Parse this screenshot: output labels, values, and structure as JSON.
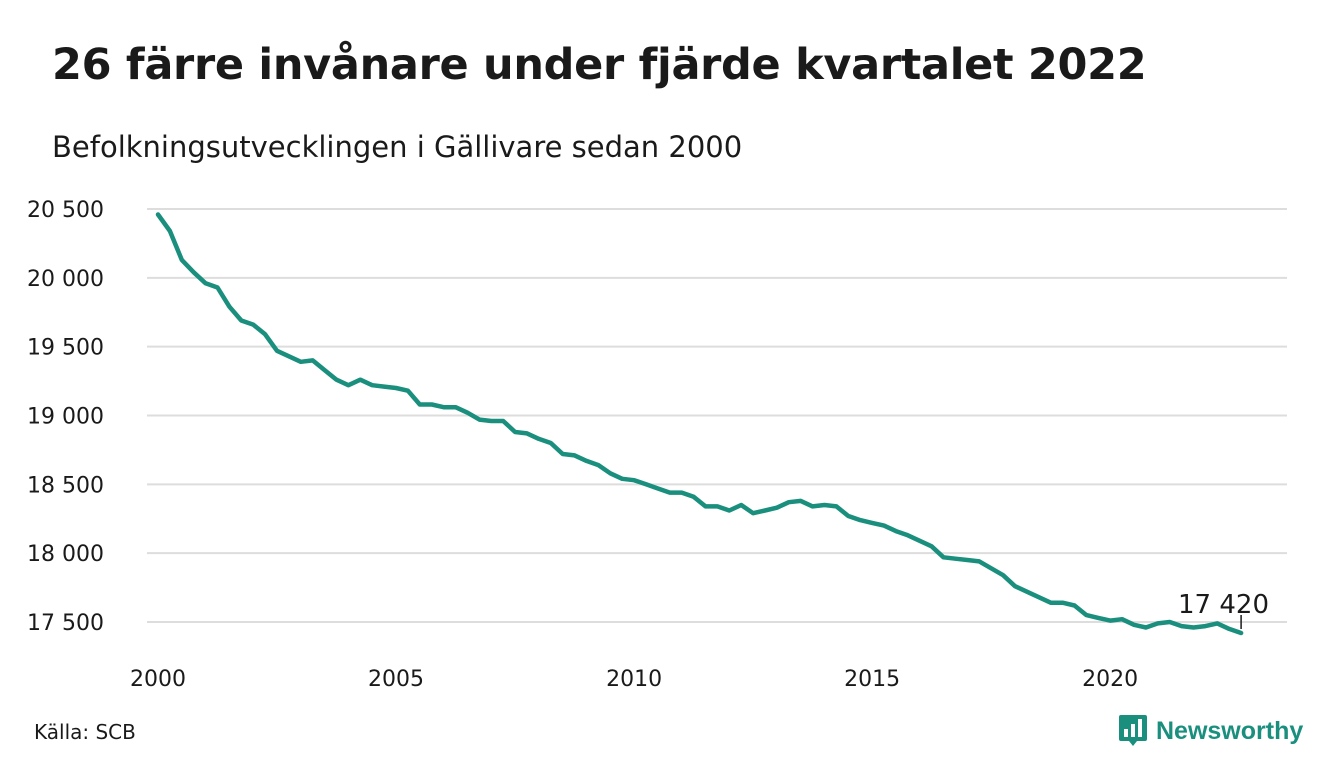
{
  "header": {
    "title": "26 färre invånare under fjärde kvartalet 2022",
    "subtitle": "Befolkningsutvecklingen i Gällivare sedan 2000"
  },
  "footer": {
    "source": "Källa: SCB",
    "brand": "Newsworthy",
    "brand_icon": "bar-chart-speech-bubble-icon"
  },
  "colors": {
    "line": "#1a8f7e",
    "grid": "#dddddd",
    "brand": "#1a8f7e",
    "text": "#1a1a1a"
  },
  "chart_data": {
    "type": "line",
    "title": "26 färre invånare under fjärde kvartalet 2022",
    "subtitle": "Befolkningsutvecklingen i Gällivare sedan 2000",
    "xlabel": "",
    "ylabel": "",
    "x_range": [
      2000.0,
      2023.0
    ],
    "x_ticks": [
      2000,
      2005,
      2010,
      2015,
      2020
    ],
    "x_tick_labels": [
      "2000",
      "2005",
      "2010",
      "2015",
      "2020"
    ],
    "ylim": [
      17300,
      20600
    ],
    "y_ticks": [
      17500,
      18000,
      18500,
      19000,
      19500,
      20000,
      20500
    ],
    "y_tick_labels": [
      "17 500",
      "18 000",
      "18 500",
      "19 000",
      "19 500",
      "20 000",
      "20 500"
    ],
    "grid": "horizontal",
    "annotation": {
      "x": 2022.75,
      "y": 17420,
      "label": "17 420"
    },
    "series": [
      {
        "x": [
          2000.0,
          2000.25,
          2000.5,
          2000.75,
          2001.0,
          2001.25,
          2001.5,
          2001.75,
          2002.0,
          2002.25,
          2002.5,
          2002.75,
          2003.0,
          2003.25,
          2003.5,
          2003.75,
          2004.0,
          2004.25,
          2004.5,
          2004.75,
          2005.0,
          2005.25,
          2005.5,
          2005.75,
          2006.0,
          2006.25,
          2006.5,
          2006.75,
          2007.0,
          2007.25,
          2007.5,
          2007.75,
          2008.0,
          2008.25,
          2008.5,
          2008.75,
          2009.0,
          2009.25,
          2009.5,
          2009.75,
          2010.0,
          2010.25,
          2010.5,
          2010.75,
          2011.0,
          2011.25,
          2011.5,
          2011.75,
          2012.0,
          2012.25,
          2012.5,
          2012.75,
          2013.0,
          2013.25,
          2013.5,
          2013.75,
          2014.0,
          2014.25,
          2014.5,
          2014.75,
          2015.0,
          2015.25,
          2015.5,
          2015.75,
          2016.0,
          2016.25,
          2016.5,
          2016.75,
          2017.0,
          2017.25,
          2017.5,
          2017.75,
          2018.0,
          2018.25,
          2018.5,
          2018.75,
          2019.0,
          2019.25,
          2019.5,
          2019.75,
          2020.0,
          2020.25,
          2020.5,
          2020.75,
          2021.0,
          2021.25,
          2021.5,
          2021.75,
          2022.0,
          2022.25,
          2022.5,
          2022.75
        ],
        "values": [
          20460,
          20340,
          20130,
          20040,
          19960,
          19930,
          19790,
          19690,
          19660,
          19590,
          19470,
          19430,
          19390,
          19400,
          19330,
          19260,
          19220,
          19260,
          19220,
          19210,
          19200,
          19180,
          19080,
          19080,
          19060,
          19060,
          19020,
          18970,
          18960,
          18960,
          18880,
          18870,
          18830,
          18800,
          18720,
          18710,
          18670,
          18640,
          18580,
          18540,
          18530,
          18500,
          18470,
          18440,
          18440,
          18410,
          18340,
          18340,
          18310,
          18350,
          18290,
          18310,
          18330,
          18370,
          18380,
          18340,
          18350,
          18340,
          18270,
          18240,
          18220,
          18200,
          18160,
          18130,
          18090,
          18050,
          17970,
          17960,
          17950,
          17940,
          17890,
          17840,
          17760,
          17720,
          17680,
          17640,
          17640,
          17620,
          17550,
          17530,
          17510,
          17520,
          17480,
          17460,
          17490,
          17500,
          17470,
          17460,
          17470,
          17490,
          17450,
          17420
        ]
      }
    ]
  }
}
